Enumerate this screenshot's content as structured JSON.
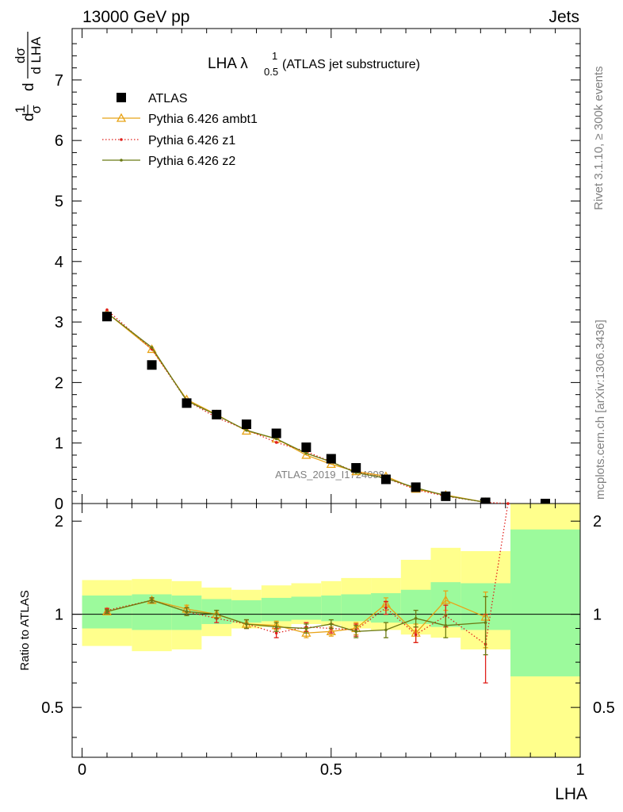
{
  "header": {
    "left": "13000 GeV pp",
    "right": "Jets"
  },
  "side_labels": {
    "rivet": "Rivet 3.1.10, ≥ 300k events",
    "mcplots": "mcplots.cern.ch [arXiv:1306.3436]"
  },
  "watermark": "ATLAS_2019_I1724098",
  "chart_data": {
    "type": "line",
    "title_main": "LHA λ",
    "title_sup": "1",
    "title_sub": "0.5",
    "title_rest": "(ATLAS jet substructure)",
    "xlabel": "LHA",
    "ylabel_main": {
      "frac1_num": "1",
      "frac1_den": "σ",
      "frac2_num": "dσ",
      "frac2_den": "d LHA",
      "d": "d"
    },
    "ylabel_ratio": "Ratio to ATLAS",
    "xlim": [
      -0.02,
      1.0
    ],
    "ylim_main": [
      0,
      7.85
    ],
    "ylim_ratio": [
      0.345,
      2.28
    ],
    "xticks": [
      {
        "v": 0,
        "label": "0"
      },
      {
        "v": 0.5,
        "label": "0.5"
      },
      {
        "v": 1,
        "label": "1"
      }
    ],
    "yticks_main": [
      {
        "v": 0,
        "label": "0"
      },
      {
        "v": 1,
        "label": "1"
      },
      {
        "v": 2,
        "label": "2"
      },
      {
        "v": 3,
        "label": "3"
      },
      {
        "v": 4,
        "label": "4"
      },
      {
        "v": 5,
        "label": "5"
      },
      {
        "v": 6,
        "label": "6"
      },
      {
        "v": 7,
        "label": "7"
      }
    ],
    "yticks_ratio": [
      {
        "v": 0.5,
        "label": "0.5"
      },
      {
        "v": 1,
        "label": "1"
      },
      {
        "v": 2,
        "label": "2"
      }
    ],
    "data": {
      "name": "ATLAS",
      "x": [
        0.05,
        0.14,
        0.21,
        0.27,
        0.33,
        0.39,
        0.45,
        0.5,
        0.55,
        0.61,
        0.67,
        0.73,
        0.81,
        0.93
      ],
      "y": [
        3.09,
        2.29,
        1.66,
        1.47,
        1.31,
        1.16,
        0.93,
        0.74,
        0.59,
        0.4,
        0.27,
        0.12,
        0.02,
        0.0
      ]
    },
    "bands": [
      {
        "x0": 0.0,
        "x1": 0.1,
        "g": [
          0.9,
          1.15
        ],
        "y": [
          0.79,
          1.29
        ]
      },
      {
        "x0": 0.1,
        "x1": 0.18,
        "g": [
          0.89,
          1.16
        ],
        "y": [
          0.76,
          1.3
        ]
      },
      {
        "x0": 0.18,
        "x1": 0.24,
        "g": [
          0.89,
          1.15
        ],
        "y": [
          0.77,
          1.28
        ]
      },
      {
        "x0": 0.24,
        "x1": 0.3,
        "g": [
          0.93,
          1.12
        ],
        "y": [
          0.85,
          1.22
        ]
      },
      {
        "x0": 0.3,
        "x1": 0.36,
        "g": [
          0.94,
          1.11
        ],
        "y": [
          0.9,
          1.2
        ]
      },
      {
        "x0": 0.36,
        "x1": 0.42,
        "g": [
          0.95,
          1.13
        ],
        "y": [
          0.91,
          1.24
        ]
      },
      {
        "x0": 0.42,
        "x1": 0.48,
        "g": [
          0.96,
          1.14
        ],
        "y": [
          0.93,
          1.26
        ]
      },
      {
        "x0": 0.48,
        "x1": 0.52,
        "g": [
          0.95,
          1.15
        ],
        "y": [
          0.92,
          1.28
        ]
      },
      {
        "x0": 0.52,
        "x1": 0.58,
        "g": [
          0.95,
          1.16
        ],
        "y": [
          0.9,
          1.31
        ]
      },
      {
        "x0": 0.58,
        "x1": 0.64,
        "g": [
          0.94,
          1.17
        ],
        "y": [
          0.89,
          1.31
        ]
      },
      {
        "x0": 0.64,
        "x1": 0.7,
        "g": [
          0.93,
          1.2
        ],
        "y": [
          0.86,
          1.5
        ]
      },
      {
        "x0": 0.7,
        "x1": 0.76,
        "g": [
          0.91,
          1.27
        ],
        "y": [
          0.84,
          1.64
        ]
      },
      {
        "x0": 0.76,
        "x1": 0.86,
        "g": [
          0.89,
          1.26
        ],
        "y": [
          0.77,
          1.6
        ]
      },
      {
        "x0": 0.86,
        "x1": 1.0,
        "g": [
          0.63,
          1.88
        ],
        "y": [
          0.345,
          2.28
        ]
      }
    ],
    "series": [
      {
        "name": "Pythia 6.426 ambt1",
        "color": "#e8a317",
        "style": "solid",
        "marker": "triangle",
        "x": [
          0.05,
          0.14,
          0.21,
          0.27,
          0.33,
          0.39,
          0.45,
          0.5,
          0.55,
          0.61,
          0.67,
          0.73,
          0.81
        ],
        "y": [
          3.15,
          2.55,
          1.72,
          1.47,
          1.2,
          1.07,
          0.8,
          0.65,
          0.53,
          0.45,
          0.24,
          0.14,
          0.02
        ],
        "ratio": [
          1.02,
          1.11,
          1.04,
          1.0,
          0.93,
          0.92,
          0.87,
          0.88,
          0.9,
          1.08,
          0.87,
          1.11,
          0.98
        ],
        "ratio_err": [
          0.015,
          0.02,
          0.03,
          0.03,
          0.03,
          0.03,
          0.03,
          0.03,
          0.04,
          0.05,
          0.06,
          0.08,
          0.2
        ]
      },
      {
        "name": "Pythia 6.426 z1",
        "color": "#e0201b",
        "style": "dotted",
        "marker": "dot",
        "x": [
          0.05,
          0.14,
          0.21,
          0.27,
          0.33,
          0.39,
          0.45,
          0.5,
          0.55,
          0.61,
          0.67,
          0.73,
          0.81,
          0.855
        ],
        "y": [
          3.2,
          2.55,
          1.7,
          1.42,
          1.22,
          1.01,
          0.86,
          0.69,
          0.52,
          0.42,
          0.23,
          0.12,
          0.02,
          0.0
        ],
        "ratio": [
          1.03,
          1.11,
          1.02,
          0.97,
          0.93,
          0.87,
          0.91,
          0.9,
          0.89,
          1.05,
          0.86,
          0.99,
          0.8,
          2.28
        ],
        "ratio_err": [
          0.015,
          0.02,
          0.03,
          0.03,
          0.03,
          0.03,
          0.03,
          0.03,
          0.04,
          0.05,
          0.05,
          0.08,
          0.2,
          0
        ]
      },
      {
        "name": "Pythia 6.426 z2",
        "color": "#6b7a14",
        "style": "solid",
        "marker": "dot",
        "x": [
          0.05,
          0.14,
          0.21,
          0.27,
          0.33,
          0.39,
          0.45,
          0.5,
          0.55,
          0.61,
          0.67,
          0.73,
          0.81
        ],
        "y": [
          3.15,
          2.58,
          1.7,
          1.46,
          1.21,
          1.07,
          0.83,
          0.69,
          0.51,
          0.42,
          0.26,
          0.13,
          0.02
        ],
        "ratio": [
          1.02,
          1.11,
          1.02,
          1.0,
          0.93,
          0.91,
          0.9,
          0.93,
          0.88,
          0.89,
          0.97,
          0.92,
          0.94
        ],
        "ratio_err": [
          0.015,
          0.02,
          0.03,
          0.03,
          0.03,
          0.03,
          0.03,
          0.03,
          0.04,
          0.05,
          0.06,
          0.08,
          0.2
        ]
      }
    ]
  }
}
